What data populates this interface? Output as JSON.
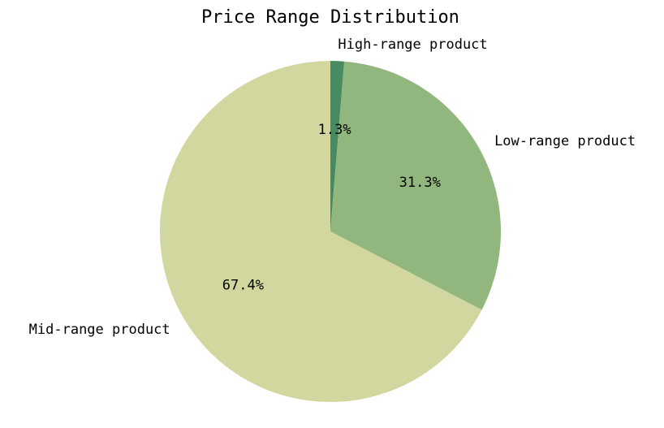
{
  "chart_data": {
    "type": "pie",
    "title": "Price Range Distribution",
    "categories": [
      "High-range product",
      "Low-range product",
      "Mid-range product"
    ],
    "values": [
      1.3,
      31.3,
      67.4
    ],
    "value_labels": [
      "1.3%",
      "31.3%",
      "67.4%"
    ],
    "colors": [
      "#468b62",
      "#92b77e",
      "#d2d79f"
    ],
    "start_angle": "top",
    "direction": "clockwise",
    "legend": "none"
  }
}
